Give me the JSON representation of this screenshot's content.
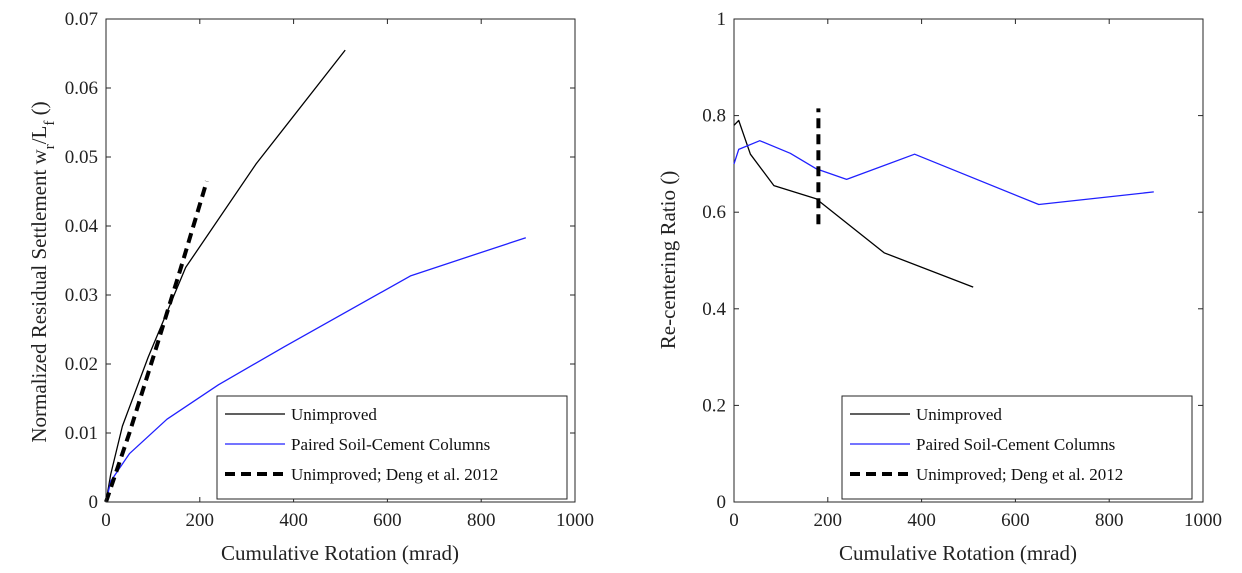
{
  "chart_data": [
    {
      "type": "line",
      "title": "",
      "xlabel": "Cumulative Rotation (mrad)",
      "ylabel": "Normalized Residual Settlement w",
      "ylabel_sub_1": "r",
      "ylabel_mid": "/L",
      "ylabel_sub_2": "f",
      "ylabel_tail": " ()",
      "xlim": [
        0,
        1000
      ],
      "ylim": [
        0,
        0.07
      ],
      "xticks": [
        "0",
        "200",
        "400",
        "600",
        "800",
        "1000"
      ],
      "yticks": [
        "0",
        "0.01",
        "0.02",
        "0.03",
        "0.04",
        "0.05",
        "0.06",
        "0.07"
      ],
      "legend_position": "bottom-right",
      "grid": false,
      "series": [
        {
          "name": "Unimproved",
          "color": "#000000",
          "style": "solid",
          "x": [
            0,
            10,
            35,
            90,
            170,
            320,
            510
          ],
          "y": [
            0,
            0.004,
            0.011,
            0.021,
            0.034,
            0.049,
            0.0655
          ]
        },
        {
          "name": "Paired Soil-Cement Columns",
          "color": "#2020ff",
          "style": "solid",
          "x": [
            0,
            10,
            50,
            130,
            240,
            380,
            650,
            895
          ],
          "y": [
            0,
            0.003,
            0.007,
            0.012,
            0.017,
            0.0225,
            0.0328,
            0.0383
          ]
        },
        {
          "name": "Unimproved; Deng et al. 2012",
          "color": "#000000",
          "style": "dashed",
          "x": [
            0,
            50,
            110,
            160,
            215
          ],
          "y": [
            0,
            0.01,
            0.023,
            0.034,
            0.0465
          ]
        }
      ]
    },
    {
      "type": "line",
      "title": "",
      "xlabel": "Cumulative Rotation (mrad)",
      "ylabel": "Re-centering Ratio ()",
      "xlim": [
        0,
        1000
      ],
      "ylim": [
        0,
        1
      ],
      "xticks": [
        "0",
        "200",
        "400",
        "600",
        "800",
        "1000"
      ],
      "yticks": [
        "0",
        "0.2",
        "0.4",
        "0.6",
        "0.8",
        "1"
      ],
      "legend_position": "bottom-right",
      "grid": false,
      "series": [
        {
          "name": "Unimproved",
          "color": "#000000",
          "style": "solid",
          "x": [
            0,
            10,
            35,
            85,
            175,
            320,
            510
          ],
          "y": [
            0.78,
            0.79,
            0.72,
            0.655,
            0.628,
            0.516,
            0.445
          ]
        },
        {
          "name": "Paired Soil-Cement Columns",
          "color": "#2020ff",
          "style": "solid",
          "x": [
            0,
            10,
            55,
            120,
            175,
            240,
            385,
            650,
            895
          ],
          "y": [
            0.7,
            0.73,
            0.748,
            0.722,
            0.69,
            0.668,
            0.72,
            0.616,
            0.642
          ]
        },
        {
          "name": "Unimproved; Deng et al. 2012",
          "color": "#000000",
          "style": "dashed",
          "x": [
            180,
            180
          ],
          "y": [
            0.575,
            0.815
          ]
        }
      ]
    }
  ]
}
